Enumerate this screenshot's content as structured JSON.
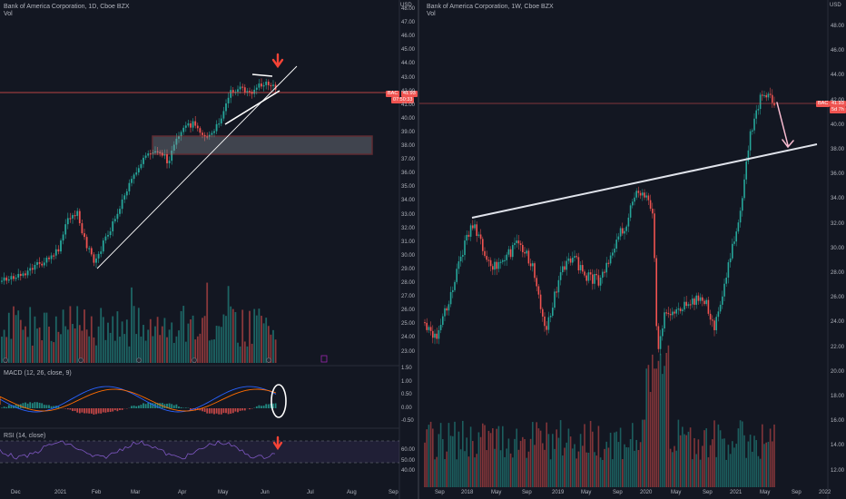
{
  "left_chart": {
    "title": "Bank of America Corporation, 1D, Cboe BZX",
    "vol_label": "Vol",
    "macd_label": "MACD (12, 26, close, 9)",
    "rsi_label": "RSI (14, close)",
    "price_axis": [
      "48.00",
      "47.00",
      "46.00",
      "45.00",
      "44.00",
      "43.00",
      "42.00",
      "41.00",
      "40.00",
      "39.00",
      "38.00",
      "37.00",
      "36.00",
      "35.00",
      "34.00",
      "33.00",
      "32.00",
      "31.00",
      "30.00",
      "29.00",
      "28.00",
      "27.00",
      "26.00",
      "25.00",
      "24.00",
      "23.00"
    ],
    "macd_axis": [
      "1.50",
      "1.00",
      "0.50",
      "0.00",
      "-0.50"
    ],
    "rsi_axis": [
      "60.00",
      "50.00",
      "40.00"
    ],
    "time_axis": [
      "Dec",
      "2021",
      "Feb",
      "Mar",
      "Apr",
      "May",
      "Jun",
      "Jul",
      "Aug",
      "Sep"
    ],
    "price_tag_symbol": "BAC",
    "price_tag_value": "41.93",
    "price_tag_countdown": "07:50:33",
    "currency": "USD"
  },
  "right_chart": {
    "title": "Bank of America Corporation, 1W, Cboe BZX",
    "vol_label": "Vol",
    "price_axis": [
      "48.00",
      "46.00",
      "44.00",
      "42.00",
      "40.00",
      "38.00",
      "36.00",
      "34.00",
      "32.00",
      "30.00",
      "28.00",
      "26.00",
      "24.00",
      "22.00",
      "20.00",
      "18.00",
      "16.00",
      "14.00",
      "12.00"
    ],
    "time_axis": [
      "Sep",
      "2018",
      "May",
      "Sep",
      "2019",
      "May",
      "Sep",
      "2020",
      "May",
      "Sep",
      "2021",
      "May",
      "Sep",
      "2022"
    ],
    "price_tag_symbol": "BAC",
    "price_tag_value": "41.93",
    "price_tag_countdown": "5d 7h",
    "currency": "USD"
  },
  "colors": {
    "up": "#26a69a",
    "down": "#ef5350",
    "bg": "#131722",
    "annotation": "#ffffff",
    "zone": "#ef5350",
    "rsi": "#7e57c2"
  }
}
